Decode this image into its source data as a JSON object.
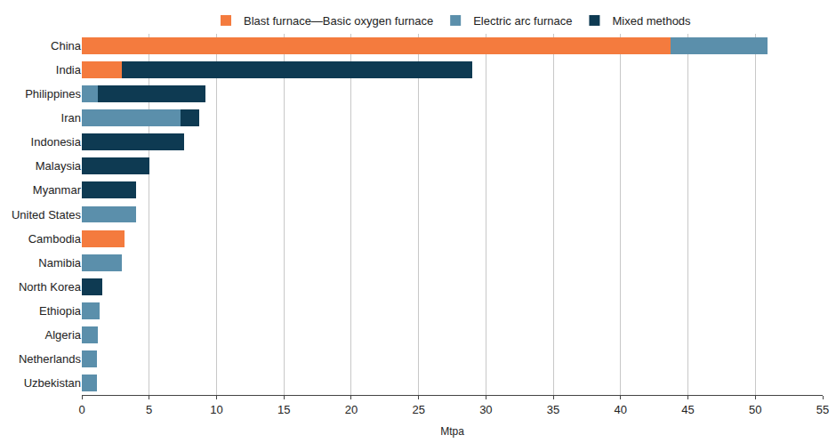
{
  "chart_data": {
    "type": "bar",
    "orientation": "horizontal",
    "stacked": true,
    "grid": true,
    "legend": "top",
    "x_label": "Mtpa",
    "categories": [
      "China",
      "India",
      "Philippines",
      "Iran",
      "Indonesia",
      "Malaysia",
      "Myanmar",
      "United States",
      "Cambodia",
      "Namibia",
      "North Korea",
      "Ethiopia",
      "Algeria",
      "Netherlands",
      "Uzbekistan"
    ],
    "series": [
      {
        "name": "Blast furnace—Basic oxygen furnace",
        "color": "#f47b3e",
        "values": [
          43.7,
          3.0,
          null,
          null,
          null,
          null,
          null,
          null,
          3.2,
          null,
          null,
          null,
          null,
          null,
          null
        ]
      },
      {
        "name": "Electric arc furnace",
        "color": "#5b8fab",
        "values": [
          7.2,
          null,
          1.2,
          7.3,
          null,
          null,
          null,
          4.0,
          null,
          3.0,
          null,
          1.3,
          1.2,
          1.1,
          1.1
        ]
      },
      {
        "name": "Mixed methods",
        "color": "#0e3a52",
        "values": [
          null,
          26.0,
          8.0,
          1.4,
          7.6,
          5.0,
          4.0,
          null,
          null,
          null,
          1.5,
          null,
          null,
          null,
          null
        ]
      }
    ],
    "xlim": [
      0,
      55
    ],
    "xticks": [
      0,
      5,
      10,
      15,
      20,
      25,
      30,
      35,
      40,
      45,
      50,
      55
    ]
  }
}
